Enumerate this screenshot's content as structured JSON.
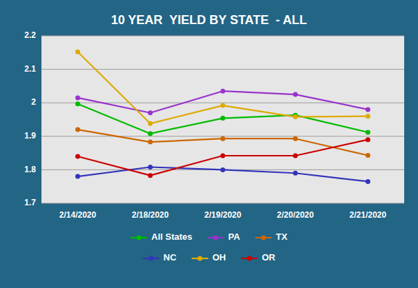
{
  "chart_data": {
    "type": "line",
    "title": "10 YEAR  YIELD BY STATE  - ALL",
    "categories": [
      "2/14/2020",
      "2/18/2020",
      "2/19/2020",
      "2/20/2020",
      "2/21/2020"
    ],
    "series": [
      {
        "name": "All States",
        "color": "#00bb00",
        "marker": "circle",
        "values": [
          1.997,
          1.908,
          1.954,
          1.963,
          1.912
        ]
      },
      {
        "name": "PA",
        "color": "#9933cc",
        "marker": "circle",
        "values": [
          2.015,
          1.97,
          2.035,
          2.025,
          1.98
        ]
      },
      {
        "name": "TX",
        "color": "#cc6600",
        "marker": "circle",
        "values": [
          1.92,
          1.883,
          1.893,
          1.893,
          1.843
        ]
      },
      {
        "name": "NC",
        "color": "#3333bb",
        "marker": "circle",
        "values": [
          1.78,
          1.808,
          1.8,
          1.79,
          1.765
        ]
      },
      {
        "name": "OH",
        "color": "#ddaa00",
        "marker": "circle",
        "values": [
          2.152,
          1.938,
          1.992,
          1.958,
          1.96
        ]
      },
      {
        "name": "OR",
        "color": "#cc0000",
        "marker": "circle",
        "values": [
          1.84,
          1.783,
          1.842,
          1.842,
          1.89
        ]
      }
    ],
    "ylim": [
      1.7,
      2.2
    ],
    "yticks": [
      1.7,
      1.8,
      1.9,
      2,
      2.1,
      2.2
    ],
    "grid": true,
    "legend": "bottom"
  }
}
